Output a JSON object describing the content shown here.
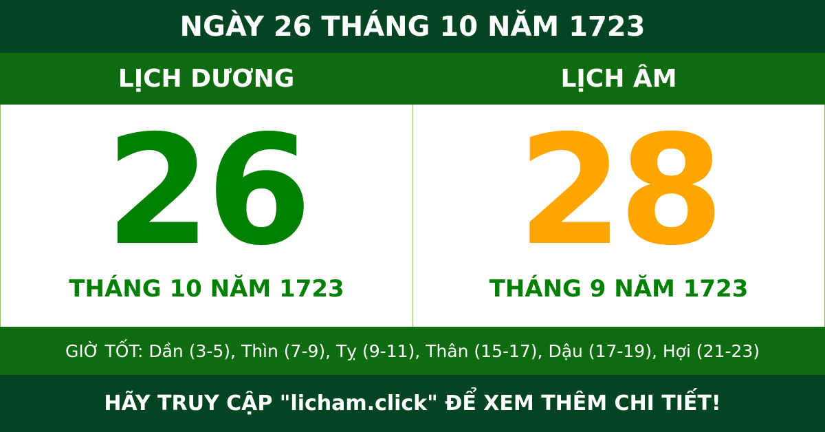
{
  "title": "NGÀY 26 THÁNG 10 NĂM 1723",
  "solar": {
    "heading": "LỊCH DƯƠNG",
    "day": "26",
    "month_year": "THÁNG 10 NĂM 1723",
    "color": "#008000"
  },
  "lunar": {
    "heading": "LỊCH ÂM",
    "day": "28",
    "month_year": "THÁNG 9 NĂM 1723",
    "color": "#ffa500"
  },
  "good_hours": "GIỜ TỐT: Dần (3-5), Thìn (7-9), Tỵ (9-11), Thân (15-17), Dậu (17-19), Hợi (21-23)",
  "footer": "HÃY TRUY CẬP \"licham.click\" ĐỂ XEM THÊM CHI TIẾT!"
}
